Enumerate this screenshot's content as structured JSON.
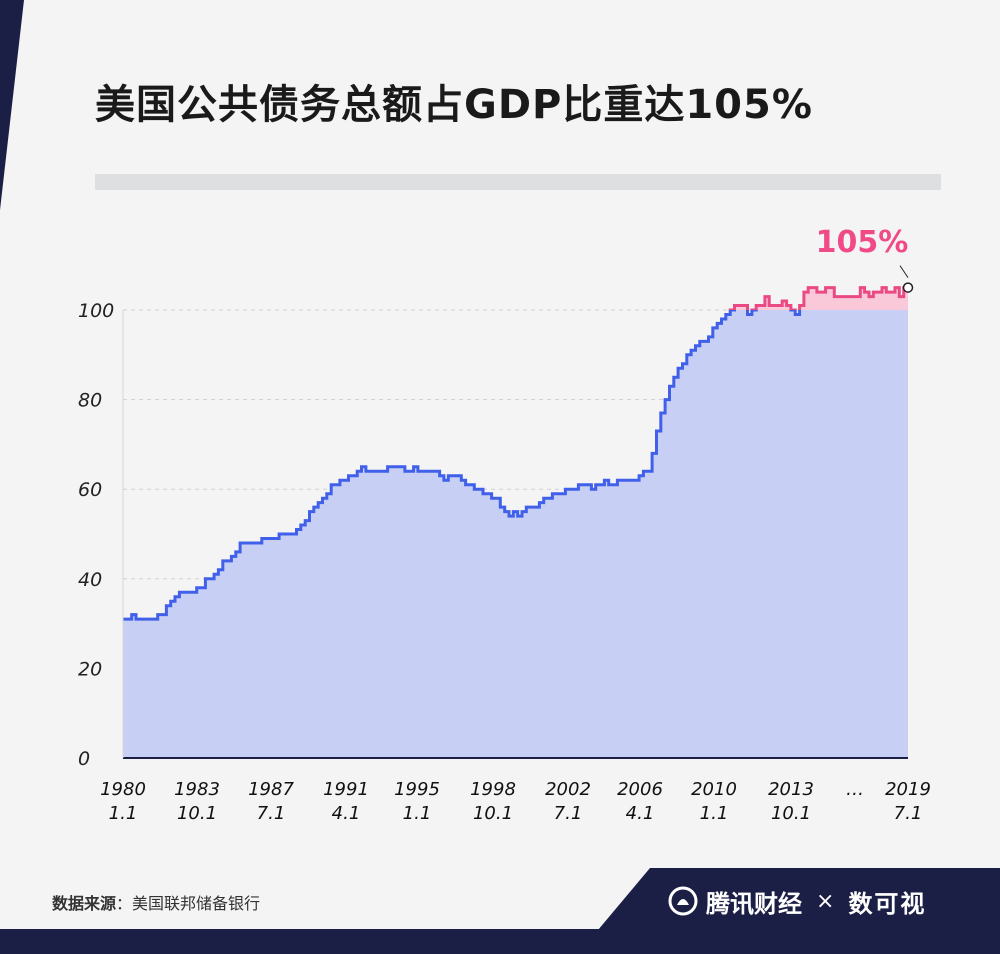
{
  "title": "美国公共债务总额占GDP比重达105%",
  "source": {
    "label": "数据来源",
    "text": "美国联邦储备银行"
  },
  "brand": {
    "name": "腾讯财经",
    "separator": "×",
    "partner": "数可视"
  },
  "colors": {
    "line": "#4060ea",
    "area": "#c7cff4",
    "highlight_line": "#ea4a84",
    "highlight_area": "#f9c9d9",
    "annotation": "#f04a87",
    "navy": "#1c1f45"
  },
  "chart_data": {
    "type": "area",
    "title": "美国公共债务总额占GDP比重达105%",
    "ylabel": "",
    "xlabel": "",
    "ylim": [
      0,
      100
    ],
    "yticks": [
      "0",
      "20",
      "40",
      "60",
      "80",
      "100"
    ],
    "xticks": [
      [
        "1980",
        "1.1"
      ],
      [
        "1983",
        "10.1"
      ],
      [
        "1987",
        "7.1"
      ],
      [
        "1991",
        "4.1"
      ],
      [
        "1995",
        "1.1"
      ],
      [
        "1998",
        "10.1"
      ],
      [
        "2002",
        "7.1"
      ],
      [
        "2006",
        "4.1"
      ],
      [
        "2010",
        "1.1"
      ],
      [
        "2013",
        "10.1"
      ],
      [
        "…",
        ""
      ],
      [
        "2019",
        "7.1"
      ]
    ],
    "grid": true,
    "annotation": {
      "text": "105%",
      "value": 105
    },
    "series": [
      {
        "step": "quarterly",
        "start": "1980 Q1",
        "values": [
          31,
          31,
          32,
          31,
          31,
          31,
          31,
          31,
          32,
          32,
          34,
          35,
          36,
          37,
          37,
          37,
          37,
          38,
          38,
          40,
          40,
          41,
          42,
          44,
          44,
          45,
          46,
          48,
          48,
          48,
          48,
          48,
          49,
          49,
          49,
          49,
          50,
          50,
          50,
          50,
          51,
          52,
          53,
          55,
          56,
          57,
          58,
          59,
          61,
          61,
          62,
          62,
          63,
          63,
          64,
          65,
          64,
          64,
          64,
          64,
          64,
          65,
          65,
          65,
          65,
          64,
          64,
          65,
          64,
          64,
          64,
          64,
          64,
          63,
          62,
          63,
          63,
          63,
          62,
          61,
          61,
          60,
          60,
          59,
          59,
          58,
          58,
          56,
          55,
          54,
          55,
          54,
          55,
          56,
          56,
          56,
          57,
          58,
          58,
          59,
          59,
          59,
          60,
          60,
          60,
          61,
          61,
          61,
          60,
          61,
          61,
          62,
          61,
          61,
          62,
          62,
          62,
          62,
          62,
          63,
          64,
          64,
          68,
          73,
          77,
          80,
          83,
          85,
          87,
          88,
          90,
          91,
          92,
          93,
          93,
          94,
          96,
          97,
          98,
          99,
          100,
          101,
          101,
          101,
          99,
          100,
          101,
          101,
          103,
          101,
          101,
          101,
          102,
          101,
          100,
          99,
          101,
          104,
          105,
          105,
          104,
          104,
          105,
          105,
          103,
          103,
          103,
          103,
          103,
          103,
          105,
          104,
          103,
          104,
          104,
          105,
          104,
          104,
          105,
          103,
          105
        ]
      }
    ]
  }
}
